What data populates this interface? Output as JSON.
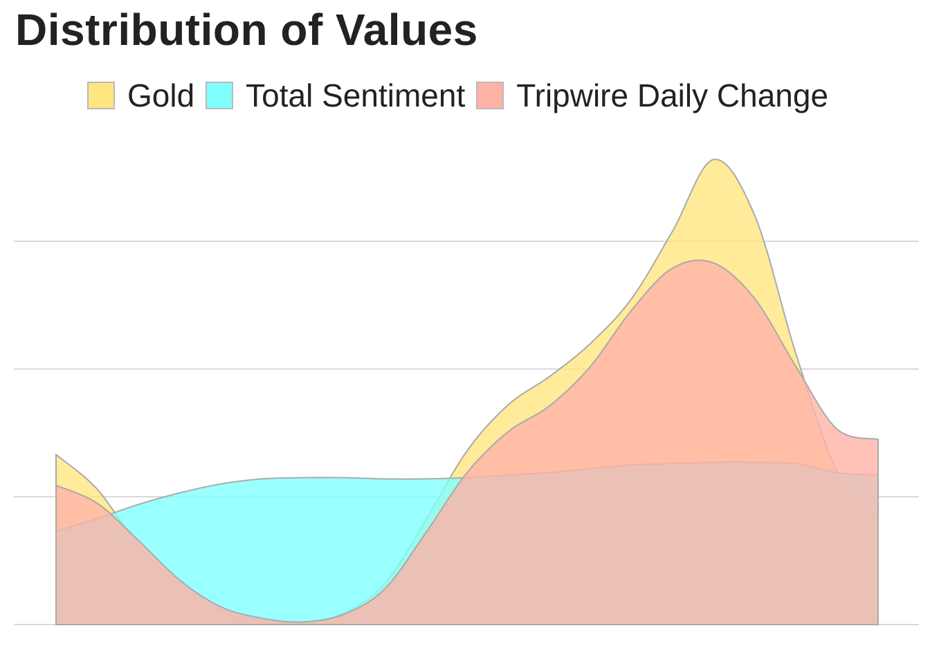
{
  "chart_data": {
    "type": "area",
    "title": "Distribution of Values",
    "xlabel": "",
    "ylabel": "",
    "xlim": [
      0,
      10
    ],
    "ylim": [
      0,
      3.6
    ],
    "grid": "horizontal",
    "legend_position": "top",
    "x": [
      0,
      0.5,
      1,
      1.5,
      2,
      2.5,
      3,
      3.5,
      4,
      4.5,
      5,
      5.5,
      6,
      6.5,
      7,
      7.5,
      8,
      8.5,
      9,
      9.5,
      10
    ],
    "series": [
      {
        "name": "Gold",
        "color": "#ffe680",
        "values": [
          1.33,
          1.06,
          0.62,
          0.31,
          0.11,
          0.03,
          0.02,
          0.09,
          0.32,
          0.82,
          1.36,
          1.72,
          1.94,
          2.2,
          2.55,
          3.08,
          3.64,
          3.2,
          2.12,
          1.2,
          0.85
        ]
      },
      {
        "name": "Total Sentiment",
        "color": "#80ffff",
        "values": [
          0.73,
          0.83,
          0.94,
          1.03,
          1.1,
          1.14,
          1.15,
          1.15,
          1.14,
          1.14,
          1.15,
          1.17,
          1.19,
          1.22,
          1.25,
          1.26,
          1.27,
          1.27,
          1.26,
          1.19,
          1.17
        ]
      },
      {
        "name": "Tripwire Daily Change",
        "color": "#ffb3a7",
        "values": [
          1.09,
          0.95,
          0.66,
          0.35,
          0.14,
          0.05,
          0.02,
          0.08,
          0.28,
          0.72,
          1.19,
          1.51,
          1.71,
          2.02,
          2.46,
          2.79,
          2.83,
          2.55,
          2.02,
          1.53,
          1.45
        ]
      }
    ]
  }
}
